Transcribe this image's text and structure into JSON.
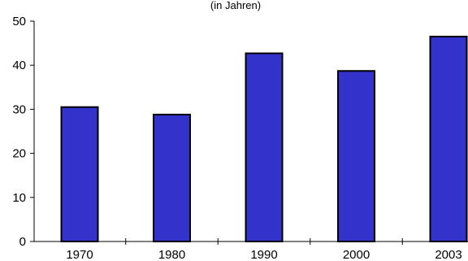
{
  "chart_data": {
    "type": "bar",
    "subtitle": "(in Jahren)",
    "categories": [
      "1970",
      "1980",
      "1990",
      "2000",
      "2003"
    ],
    "values": [
      30.5,
      28.8,
      42.7,
      38.7,
      46.5
    ],
    "ylim": [
      0,
      50
    ],
    "yticks": [
      "0",
      "10",
      "20",
      "30",
      "40",
      "50"
    ],
    "grid": false,
    "bar_color": "#3333cc",
    "bar_edge_color": "#000000"
  }
}
